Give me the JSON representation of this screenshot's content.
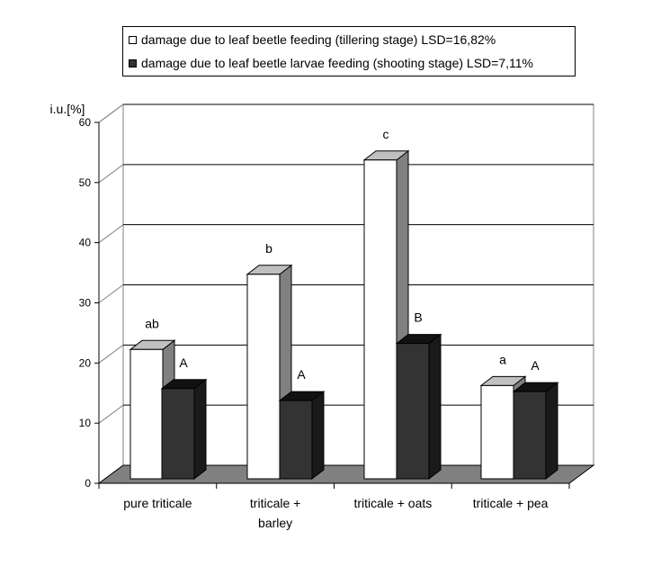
{
  "chart_data": {
    "type": "bar",
    "ylabel": "i.u.[%]",
    "ylim": [
      0,
      60
    ],
    "yticks": [
      0,
      10,
      20,
      30,
      40,
      50,
      60
    ],
    "grid": true,
    "legend_position": "top",
    "categories": [
      [
        "pure triticale"
      ],
      [
        "triticale +",
        "barley"
      ],
      [
        "triticale + oats"
      ],
      [
        "triticale + pea"
      ]
    ],
    "series": [
      {
        "name": "damage due to leaf beetle feeding (tillering stage) LSD=16,82%",
        "values": [
          21.5,
          34,
          53,
          15.5
        ],
        "labels": [
          "ab",
          "b",
          "c",
          "a"
        ],
        "color": "#ffffff"
      },
      {
        "name": "damage due to leaf beetle larvae feeding (shooting stage) LSD=7,11%",
        "values": [
          15,
          13,
          22.5,
          14.5
        ],
        "labels": [
          "A",
          "A",
          "B",
          "A"
        ],
        "color": "#333333"
      }
    ]
  }
}
